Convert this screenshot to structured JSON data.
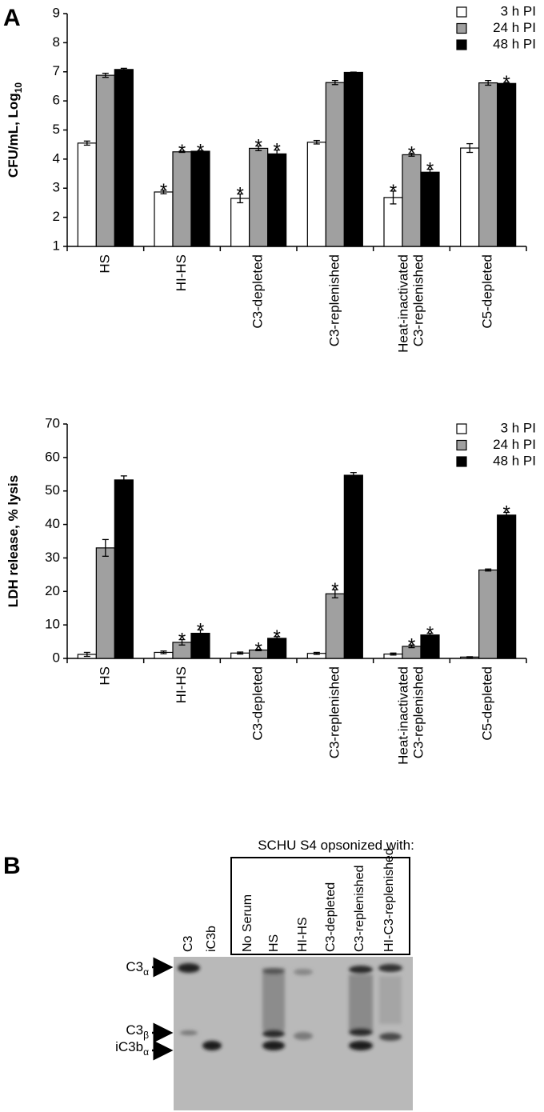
{
  "panels": [
    "A",
    "B"
  ],
  "chart_data": [
    {
      "type": "bar",
      "ylabel": "CFU/mL, Log",
      "ylabel_sub": "10",
      "categories": [
        "HS",
        "HI-HS",
        "C3-depleted",
        "C3-replenished",
        [
          "Heat-inactivated",
          "C3-replenished"
        ],
        "C5-depleted"
      ],
      "ylim": [
        1,
        9
      ],
      "yticks": [
        1,
        2,
        3,
        4,
        5,
        6,
        7,
        8,
        9
      ],
      "legend": "upper right",
      "significance_label": "*",
      "series": [
        {
          "name": "3 h PI",
          "color": "#ffffff",
          "values": [
            4.55,
            2.87,
            2.65,
            4.58,
            2.68,
            4.38
          ],
          "errors": [
            0.07,
            0.06,
            0.15,
            0.06,
            0.22,
            0.15
          ],
          "significant": [
            false,
            true,
            true,
            false,
            true,
            false
          ]
        },
        {
          "name": "24 h PI",
          "color": "#a0a0a0",
          "values": [
            6.88,
            4.25,
            4.37,
            6.63,
            4.15,
            6.62
          ],
          "errors": [
            0.07,
            0.02,
            0.08,
            0.07,
            0.05,
            0.08
          ],
          "significant": [
            false,
            true,
            true,
            false,
            true,
            false
          ]
        },
        {
          "name": "48 h PI",
          "color": "#000000",
          "values": [
            7.08,
            4.27,
            4.18,
            6.98,
            3.55,
            6.6
          ],
          "errors": [
            0.04,
            0.02,
            0.13,
            0.01,
            0.1,
            0.03
          ],
          "significant": [
            false,
            true,
            true,
            false,
            true,
            true
          ]
        }
      ]
    },
    {
      "type": "bar",
      "ylabel": "LDH release, % lysis",
      "categories": [
        "HS",
        "HI-HS",
        "C3-depleted",
        "C3-replenished",
        [
          "Heat-inactivated",
          "C3-replenished"
        ],
        "C5-depleted"
      ],
      "ylim": [
        0,
        70
      ],
      "yticks": [
        0,
        10,
        20,
        30,
        40,
        50,
        60,
        70
      ],
      "legend": "upper right",
      "significance_label": "*",
      "series": [
        {
          "name": "3 h PI",
          "color": "#ffffff",
          "values": [
            1.2,
            1.8,
            1.6,
            1.5,
            1.3,
            0.4
          ],
          "errors": [
            0.6,
            0.4,
            0.3,
            0.3,
            0.3,
            0.1
          ],
          "significant": [
            false,
            false,
            false,
            false,
            false,
            false
          ]
        },
        {
          "name": "24 h PI",
          "color": "#a0a0a0",
          "values": [
            33,
            4.8,
            2.5,
            19.3,
            3.6,
            26.4
          ],
          "errors": [
            2.5,
            0.8,
            0.2,
            1.2,
            0.4,
            0.3
          ],
          "significant": [
            false,
            true,
            true,
            true,
            true,
            false
          ]
        },
        {
          "name": "48 h PI",
          "color": "#000000",
          "values": [
            53.3,
            7.5,
            6.0,
            54.7,
            7.0,
            42.8
          ],
          "errors": [
            1.2,
            1.0,
            0.5,
            0.8,
            0.5,
            0.8
          ],
          "significant": [
            false,
            true,
            true,
            false,
            true,
            true
          ]
        }
      ]
    }
  ],
  "blot": {
    "title": "SCHU S4 opsonized with:",
    "lanes": [
      "C3",
      "iC3b",
      "No Serum",
      "HS",
      "HI-HS",
      "C3-depleted",
      "C3-replenished",
      "HI-C3-replenished"
    ],
    "bands": [
      {
        "text": "C3",
        "sub": "α"
      },
      {
        "text": "C3",
        "sub": "β"
      },
      {
        "text": "iC3b",
        "sub": "α"
      }
    ]
  }
}
